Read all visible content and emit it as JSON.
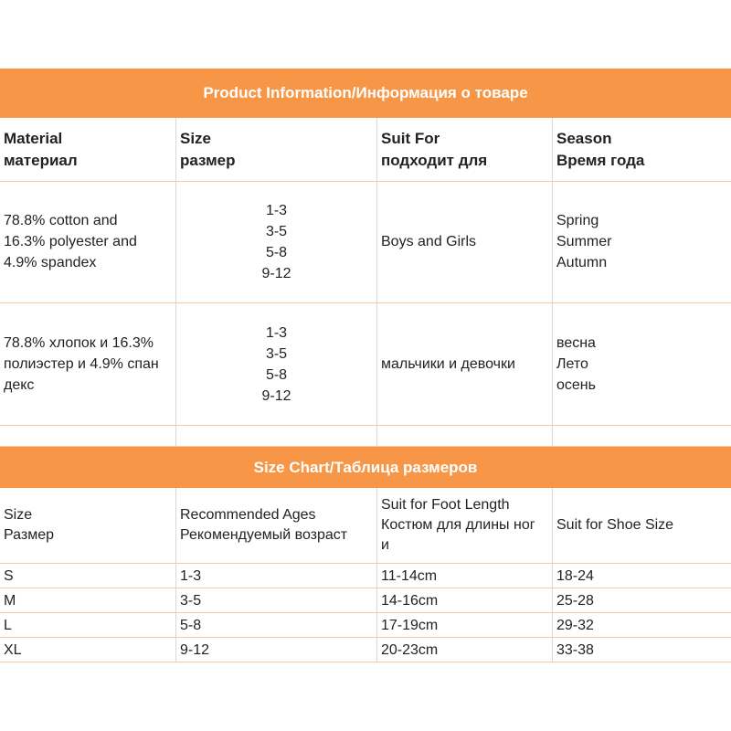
{
  "product_info": {
    "title": "Product Information/Информация о товаре",
    "headers": [
      [
        "Material",
        "материал"
      ],
      [
        "Size",
        "размер"
      ],
      [
        "Suit For",
        "подходит для"
      ],
      [
        "Season",
        "Время года"
      ]
    ],
    "rows": [
      {
        "material": [
          "78.8% cotton and",
          "16.3% polyester and",
          "4.9% spandex"
        ],
        "sizes": [
          "1-3",
          "3-5",
          "5-8",
          "9-12"
        ],
        "suit": "Boys and Girls",
        "season": [
          "Spring",
          "Summer",
          "Autumn"
        ]
      },
      {
        "material": [
          "78.8% хлопок и 16.3%",
          "полиэстер и 4.9% спан",
          "декс"
        ],
        "sizes": [
          "1-3",
          "3-5",
          "5-8",
          "9-12"
        ],
        "suit": "мальчики и девочки",
        "season": [
          "весна",
          "Лето",
          "осень"
        ]
      }
    ]
  },
  "size_chart": {
    "title": "Size Chart/Таблица размеров",
    "headers": [
      [
        "Size",
        "Размер"
      ],
      [
        "Recommended Ages",
        "Рекомендуемый возраст"
      ],
      [
        "Suit for Foot Length",
        "Костюм для длины ног",
        "и"
      ],
      [
        "Suit for Shoe Size"
      ]
    ],
    "rows": [
      [
        "S",
        "1-3",
        "11-14cm",
        "18-24"
      ],
      [
        "M",
        "3-5",
        "14-16cm",
        "25-28"
      ],
      [
        "L",
        "5-8",
        "17-19cm",
        "29-32"
      ],
      [
        "XL",
        "9-12",
        "20-23cm",
        "33-38"
      ]
    ]
  }
}
